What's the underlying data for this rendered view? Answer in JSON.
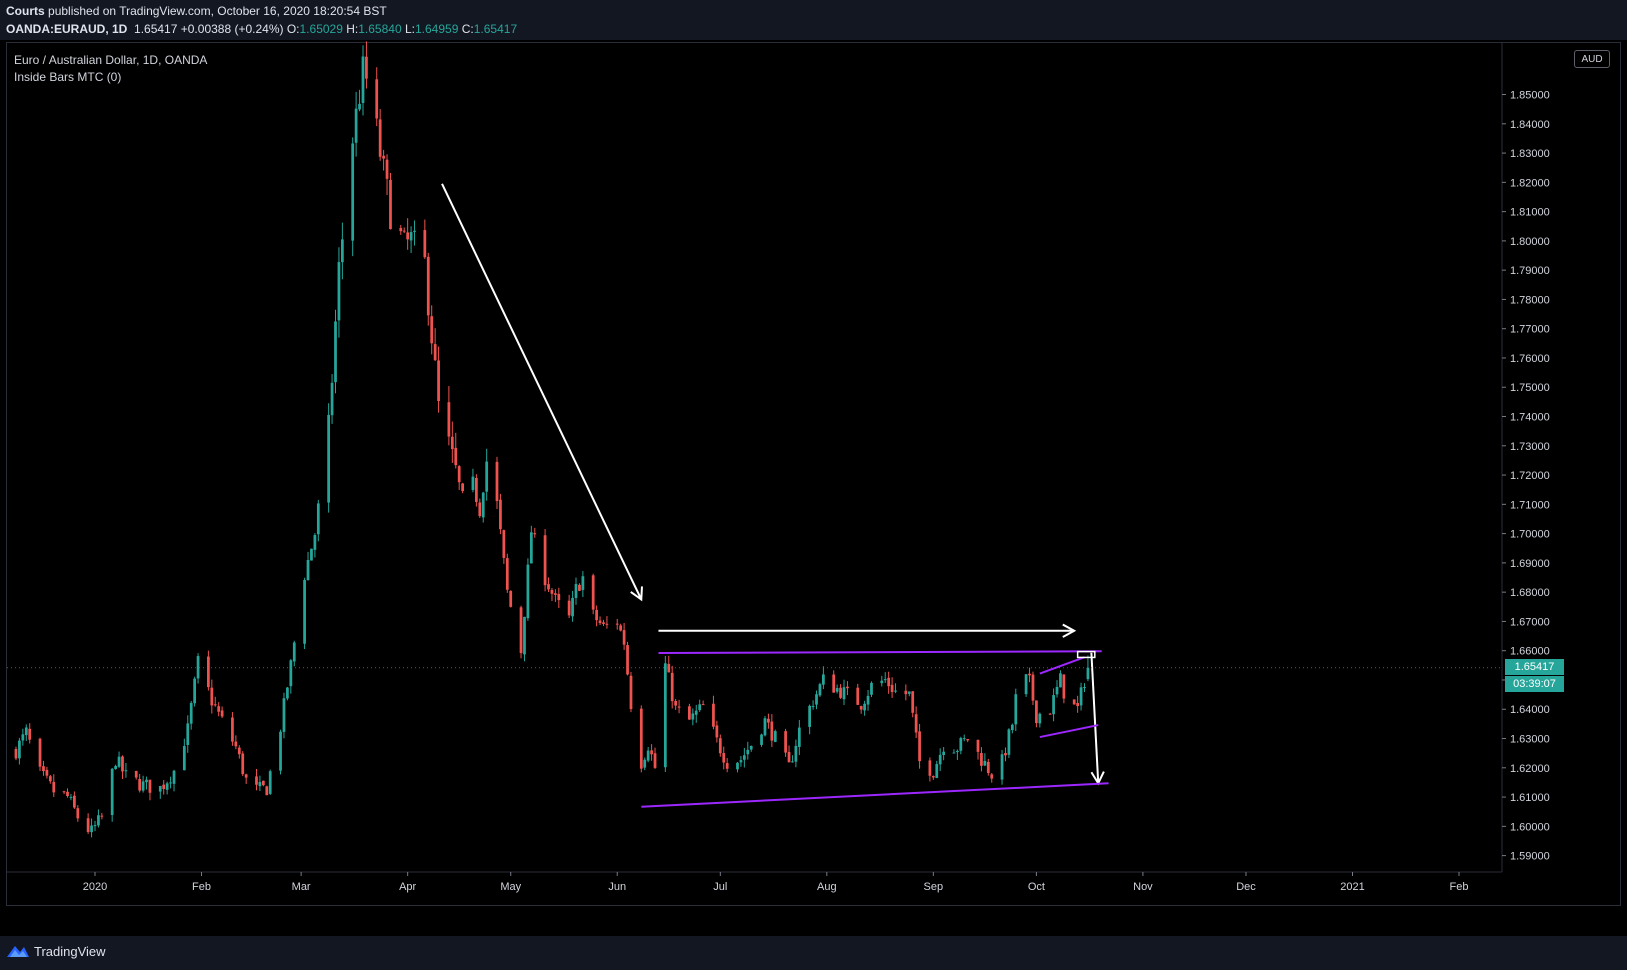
{
  "header": {
    "publisher": "Courts",
    "published_text": "published on TradingView.com, October 16, 2020 18:20:54 BST",
    "symbol": "OANDA:EURAUD, 1D",
    "last": "1.65417",
    "change": "+0.00388 (+0.24%)",
    "o_label": "O:",
    "o_value": "1.65029",
    "h_label": "H:",
    "h_value": "1.65840",
    "l_label": "L:",
    "l_value": "1.64959",
    "c_label": "C:",
    "c_value": "1.65417"
  },
  "legend": {
    "title": "Euro / Australian Dollar, 1D, OANDA",
    "indicator": "Inside Bars MTC (0)"
  },
  "currency_tag": "AUD",
  "last_price_label": "1.65417",
  "countdown_label": "03:39:07",
  "footer": {
    "brand": "TradingView"
  },
  "colors": {
    "up": "#26a69a",
    "down": "#ef5350",
    "drawing_purple": "#9c27ff",
    "drawing_white": "#ffffff",
    "last_price": "#26a69a"
  },
  "chart_data": {
    "type": "candlestick",
    "title": "Euro / Australian Dollar, 1D, OANDA",
    "xlabel": "",
    "ylabel": "",
    "ylim": [
      1.5844,
      1.8676
    ],
    "y_ticks": [
      "1.85000",
      "1.84000",
      "1.83000",
      "1.82000",
      "1.81000",
      "1.80000",
      "1.79000",
      "1.78000",
      "1.77000",
      "1.76000",
      "1.75000",
      "1.74000",
      "1.73000",
      "1.72000",
      "1.71000",
      "1.70000",
      "1.69000",
      "1.68000",
      "1.67000",
      "1.66000",
      "1.65000",
      "1.64000",
      "1.63000",
      "1.62000",
      "1.61000",
      "1.60000",
      "1.59000"
    ],
    "x_ticks": [
      {
        "label": "2020",
        "date": "2020-01-01"
      },
      {
        "label": "Feb",
        "date": "2020-02-01"
      },
      {
        "label": "Mar",
        "date": "2020-03-01"
      },
      {
        "label": "Apr",
        "date": "2020-04-01"
      },
      {
        "label": "May",
        "date": "2020-05-01"
      },
      {
        "label": "Jun",
        "date": "2020-06-01"
      },
      {
        "label": "Jul",
        "date": "2020-07-01"
      },
      {
        "label": "Aug",
        "date": "2020-08-01"
      },
      {
        "label": "Sep",
        "date": "2020-09-01"
      },
      {
        "label": "Oct",
        "date": "2020-10-01"
      },
      {
        "label": "Nov",
        "date": "2020-11-01"
      },
      {
        "label": "Dec",
        "date": "2020-12-01"
      },
      {
        "label": "2021",
        "date": "2021-01-01"
      },
      {
        "label": "Feb",
        "date": "2021-02-01"
      }
    ],
    "last_close": 1.65417,
    "price_path": [
      [
        "2019-12-09",
        1.626
      ],
      [
        "2019-12-12",
        1.632
      ],
      [
        "2019-12-16",
        1.618
      ],
      [
        "2019-12-20",
        1.612
      ],
      [
        "2019-12-24",
        1.61
      ],
      [
        "2019-12-28",
        1.601
      ],
      [
        "2019-12-31",
        1.598
      ],
      [
        "2020-01-03",
        1.603
      ],
      [
        "2020-01-07",
        1.623
      ],
      [
        "2020-01-10",
        1.617
      ],
      [
        "2020-01-15",
        1.614
      ],
      [
        "2020-01-20",
        1.613
      ],
      [
        "2020-01-24",
        1.619
      ],
      [
        "2020-01-28",
        1.633
      ],
      [
        "2020-01-31",
        1.656
      ],
      [
        "2020-02-04",
        1.643
      ],
      [
        "2020-02-07",
        1.636
      ],
      [
        "2020-02-11",
        1.627
      ],
      [
        "2020-02-15",
        1.612
      ],
      [
        "2020-02-20",
        1.613
      ],
      [
        "2020-02-24",
        1.634
      ],
      [
        "2020-02-27",
        1.655
      ],
      [
        "2020-03-02",
        1.686
      ],
      [
        "2020-03-05",
        1.7
      ],
      [
        "2020-03-09",
        1.735
      ],
      [
        "2020-03-12",
        1.79
      ],
      [
        "2020-03-16",
        1.835
      ],
      [
        "2020-03-19",
        1.858
      ],
      [
        "2020-03-21",
        1.852
      ],
      [
        "2020-03-24",
        1.83
      ],
      [
        "2020-03-27",
        1.81
      ],
      [
        "2020-03-31",
        1.798
      ],
      [
        "2020-04-02",
        1.8
      ],
      [
        "2020-04-06",
        1.792
      ],
      [
        "2020-04-08",
        1.768
      ],
      [
        "2020-04-10",
        1.743
      ],
      [
        "2020-04-14",
        1.725
      ],
      [
        "2020-04-17",
        1.712
      ],
      [
        "2020-04-20",
        1.717
      ],
      [
        "2020-04-22",
        1.708
      ],
      [
        "2020-04-24",
        1.725
      ],
      [
        "2020-04-27",
        1.71
      ],
      [
        "2020-04-30",
        1.68
      ],
      [
        "2020-05-04",
        1.66
      ],
      [
        "2020-05-07",
        1.701
      ],
      [
        "2020-05-11",
        1.685
      ],
      [
        "2020-05-14",
        1.677
      ],
      [
        "2020-05-18",
        1.671
      ],
      [
        "2020-05-20",
        1.681
      ],
      [
        "2020-05-22",
        1.685
      ],
      [
        "2020-05-25",
        1.672
      ],
      [
        "2020-05-28",
        1.668
      ],
      [
        "2020-06-01",
        1.67
      ],
      [
        "2020-06-03",
        1.663
      ],
      [
        "2020-06-05",
        1.642
      ],
      [
        "2020-06-08",
        1.622
      ],
      [
        "2020-06-10",
        1.628
      ],
      [
        "2020-06-12",
        1.62
      ],
      [
        "2020-06-15",
        1.655
      ],
      [
        "2020-06-18",
        1.64
      ],
      [
        "2020-06-22",
        1.636
      ],
      [
        "2020-06-26",
        1.641
      ],
      [
        "2020-06-30",
        1.629
      ],
      [
        "2020-07-03",
        1.622
      ],
      [
        "2020-07-07",
        1.623
      ],
      [
        "2020-07-10",
        1.628
      ],
      [
        "2020-07-14",
        1.636
      ],
      [
        "2020-07-17",
        1.63
      ],
      [
        "2020-07-21",
        1.62
      ],
      [
        "2020-07-24",
        1.633
      ],
      [
        "2020-07-28",
        1.643
      ],
      [
        "2020-07-31",
        1.65
      ],
      [
        "2020-08-04",
        1.647
      ],
      [
        "2020-08-07",
        1.645
      ],
      [
        "2020-08-11",
        1.642
      ],
      [
        "2020-08-14",
        1.648
      ],
      [
        "2020-08-18",
        1.65
      ],
      [
        "2020-08-21",
        1.646
      ],
      [
        "2020-08-25",
        1.645
      ],
      [
        "2020-08-28",
        1.622
      ],
      [
        "2020-09-01",
        1.619
      ],
      [
        "2020-09-04",
        1.628
      ],
      [
        "2020-09-08",
        1.627
      ],
      [
        "2020-09-11",
        1.63
      ],
      [
        "2020-09-15",
        1.623
      ],
      [
        "2020-09-18",
        1.618
      ],
      [
        "2020-09-21",
        1.622
      ],
      [
        "2020-09-24",
        1.635
      ],
      [
        "2020-09-26",
        1.652
      ],
      [
        "2020-09-29",
        1.649
      ],
      [
        "2020-10-01",
        1.638
      ],
      [
        "2020-10-05",
        1.64
      ],
      [
        "2020-10-08",
        1.65
      ],
      [
        "2020-10-10",
        1.642
      ],
      [
        "2020-10-13",
        1.64
      ],
      [
        "2020-10-15",
        1.65
      ],
      [
        "2020-10-16",
        1.65417
      ]
    ],
    "drawings": [
      {
        "kind": "arrow",
        "color": "white",
        "from": [
          "2020-04-11",
          1.8195
        ],
        "to": [
          "2020-06-08",
          1.6775
        ]
      },
      {
        "kind": "arrow",
        "color": "white",
        "from": [
          "2020-06-13",
          1.6668
        ],
        "to": [
          "2020-10-12",
          1.6668
        ]
      },
      {
        "kind": "arrow",
        "color": "white",
        "from": [
          "2020-10-17",
          1.6593
        ],
        "to": [
          "2020-10-19",
          1.6147
        ]
      },
      {
        "kind": "line",
        "color": "purple",
        "from": [
          "2020-06-13",
          1.6592
        ],
        "to": [
          "2020-10-20",
          1.6598
        ]
      },
      {
        "kind": "line",
        "color": "purple",
        "from": [
          "2020-06-08",
          1.6067
        ],
        "to": [
          "2020-10-22",
          1.6147
        ]
      },
      {
        "kind": "line",
        "color": "purple",
        "from": [
          "2020-10-02",
          1.6522
        ],
        "to": [
          "2020-10-15",
          1.6578
        ]
      },
      {
        "kind": "line",
        "color": "purple",
        "from": [
          "2020-10-02",
          1.6305
        ],
        "to": [
          "2020-10-19",
          1.6346
        ]
      },
      {
        "kind": "rect",
        "color": "white",
        "from": [
          "2020-10-13",
          1.6597
        ],
        "to": [
          "2020-10-18",
          1.6577
        ]
      }
    ]
  }
}
